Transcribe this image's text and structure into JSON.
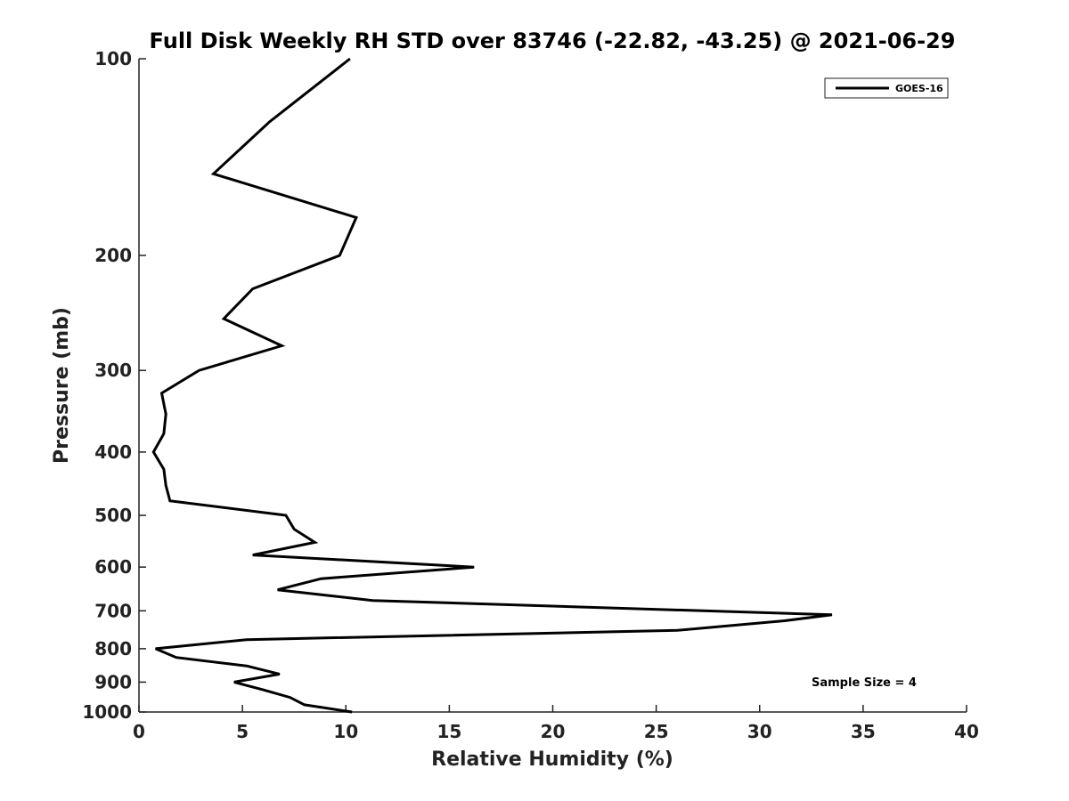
{
  "chart_data": {
    "type": "line",
    "title": "Full Disk Weekly RH STD over 83746 (-22.82, -43.25) @ 2021-06-29",
    "xlabel": "Relative Humidity (%)",
    "ylabel": "Pressure (mb)",
    "xlim": [
      0,
      40
    ],
    "ylim": [
      100,
      1000
    ],
    "y_scale": "log",
    "y_reversed": true,
    "x_ticks": [
      "0",
      "5",
      "10",
      "15",
      "20",
      "25",
      "30",
      "35",
      "40"
    ],
    "y_ticks": [
      "100",
      "200",
      "300",
      "400",
      "500",
      "600",
      "700",
      "800",
      "900",
      "1000"
    ],
    "grid": false,
    "legend_position": "top-right",
    "series": [
      {
        "name": "GOES-16",
        "color": "#000000",
        "points": [
          [
            10.3,
            1000
          ],
          [
            8.0,
            975
          ],
          [
            7.3,
            950
          ],
          [
            6.0,
            925
          ],
          [
            4.6,
            900
          ],
          [
            6.8,
            875
          ],
          [
            5.2,
            850
          ],
          [
            1.8,
            825
          ],
          [
            0.8,
            800
          ],
          [
            5.2,
            775
          ],
          [
            26.0,
            750
          ],
          [
            31.2,
            725
          ],
          [
            33.5,
            710
          ],
          [
            11.3,
            675
          ],
          [
            6.7,
            650
          ],
          [
            8.8,
            625
          ],
          [
            16.2,
            600
          ],
          [
            5.5,
            575
          ],
          [
            8.5,
            550
          ],
          [
            7.5,
            525
          ],
          [
            7.1,
            500
          ],
          [
            1.5,
            475
          ],
          [
            1.3,
            450
          ],
          [
            1.2,
            425
          ],
          [
            0.7,
            400
          ],
          [
            1.2,
            375
          ],
          [
            1.3,
            350
          ],
          [
            1.1,
            325
          ],
          [
            2.9,
            300
          ],
          [
            6.9,
            275
          ],
          [
            4.1,
            250
          ],
          [
            5.5,
            225
          ],
          [
            9.7,
            200
          ],
          [
            10.5,
            175
          ],
          [
            3.6,
            150
          ],
          [
            6.3,
            125
          ],
          [
            10.2,
            100
          ]
        ]
      }
    ],
    "annotation": "Sample Size = 4"
  }
}
